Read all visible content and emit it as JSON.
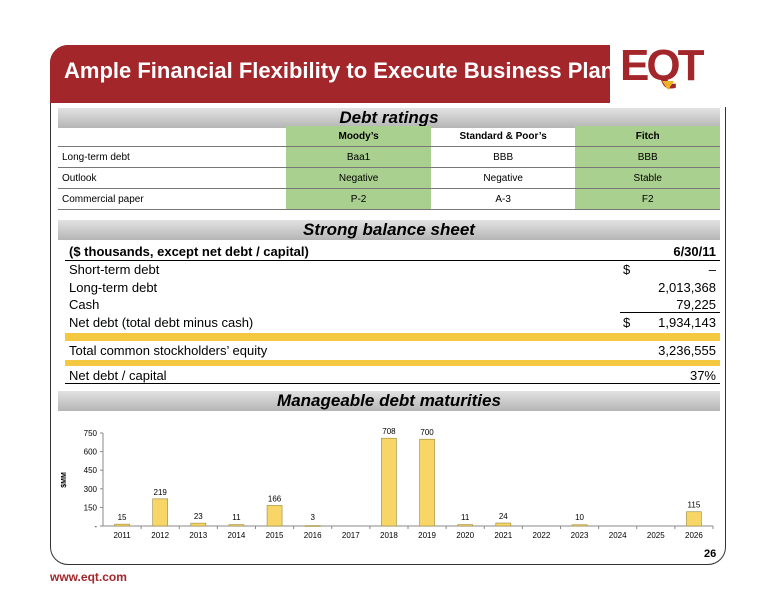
{
  "title": "Ample Financial Flexibility to Execute Business Plan",
  "logo_text": "EQT",
  "sections": {
    "ratings": "Debt ratings",
    "balance": "Strong balance sheet",
    "maturities": "Manageable debt maturities"
  },
  "ratings": {
    "headers": [
      "Moody’s",
      "Standard & Poor’s",
      "Fitch"
    ],
    "rows": [
      {
        "label": "Long-term debt",
        "moodys": "Baa1",
        "sp": "BBB",
        "fitch": "BBB"
      },
      {
        "label": "Outlook",
        "moodys": "Negative",
        "sp": "Negative",
        "fitch": "Stable"
      },
      {
        "label": "Commercial paper",
        "moodys": "P-2",
        "sp": "A-3",
        "fitch": "F2"
      }
    ]
  },
  "balance_sheet": {
    "header_label": "($ thousands, except net debt / capital)",
    "header_date": "6/30/11",
    "rows": [
      {
        "label": "Short-term debt",
        "dollar": "$",
        "value": "–"
      },
      {
        "label": "Long-term debt",
        "dollar": "",
        "value": "2,013,368"
      },
      {
        "label": "Cash",
        "dollar": "",
        "value": "79,225"
      },
      {
        "label": "Net debt (total debt minus cash)",
        "dollar": "$",
        "value": "1,934,143"
      },
      {
        "label": "Total common stockholders’ equity",
        "dollar": "",
        "value": "3,236,555"
      },
      {
        "label": "Net debt / capital",
        "dollar": "",
        "value": "37%"
      }
    ]
  },
  "chart_data": {
    "type": "bar",
    "ylabel": "$MM",
    "ylim": [
      0,
      750
    ],
    "yticks": [
      "-",
      "150",
      "300",
      "450",
      "600",
      "750"
    ],
    "categories": [
      "2011",
      "2012",
      "2013",
      "2014",
      "2015",
      "2016",
      "2017",
      "2018",
      "2019",
      "2020",
      "2021",
      "2022",
      "2023",
      "2024",
      "2025",
      "2026"
    ],
    "values": [
      15,
      219,
      23,
      11,
      166,
      3,
      null,
      708,
      700,
      11,
      24,
      null,
      10,
      null,
      null,
      115
    ],
    "color": "#f7d567"
  },
  "footer": {
    "url": "www.eqt.com",
    "page": "26"
  }
}
